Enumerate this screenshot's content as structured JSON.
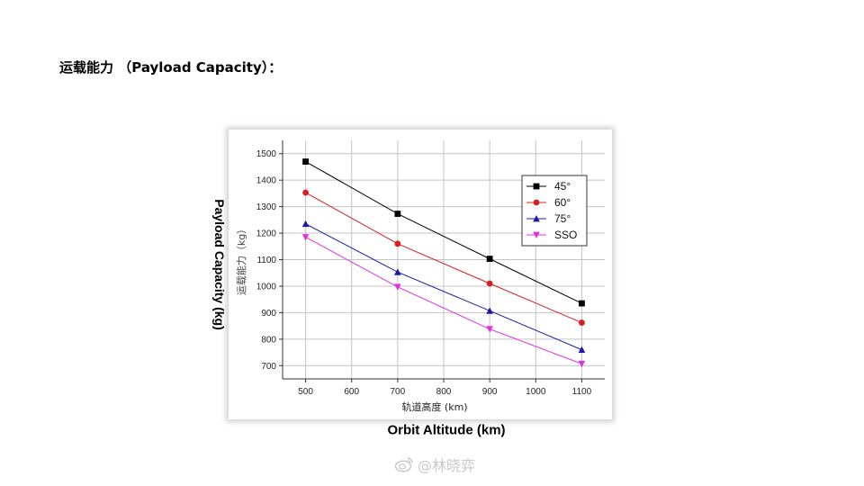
{
  "heading": "运载能力 （Payload Capacity）：",
  "outer_labels": {
    "y": "Payload Capacity (kg)",
    "x": "Orbit Altitude (km)"
  },
  "watermark": {
    "icon": "weibo-icon",
    "text": "@林晓弈"
  },
  "chart_data": {
    "type": "line",
    "title": "",
    "xlabel": "轨道高度 (km)",
    "ylabel": "运载能力（kg）",
    "x": [
      500,
      700,
      900,
      1100
    ],
    "xticks": [
      500,
      600,
      700,
      800,
      900,
      1000,
      1100
    ],
    "yticks": [
      700,
      800,
      900,
      1000,
      1100,
      1200,
      1300,
      1400,
      1500
    ],
    "xlim": [
      450,
      1150
    ],
    "ylim": [
      650,
      1550
    ],
    "grid": true,
    "legend_position": "top-right",
    "series": [
      {
        "name": "45°",
        "values": [
          1470,
          1273,
          1103,
          935
        ],
        "color": "#000000",
        "marker": "square"
      },
      {
        "name": "60°",
        "values": [
          1353,
          1160,
          1010,
          862
        ],
        "color": "#d62020",
        "marker": "circle"
      },
      {
        "name": "75°",
        "values": [
          1235,
          1053,
          907,
          760
        ],
        "color": "#1a1aa6",
        "marker": "triangle-up"
      },
      {
        "name": "SSO",
        "values": [
          1185,
          997,
          838,
          707
        ],
        "color": "#e033e0",
        "marker": "triangle-down"
      }
    ]
  }
}
